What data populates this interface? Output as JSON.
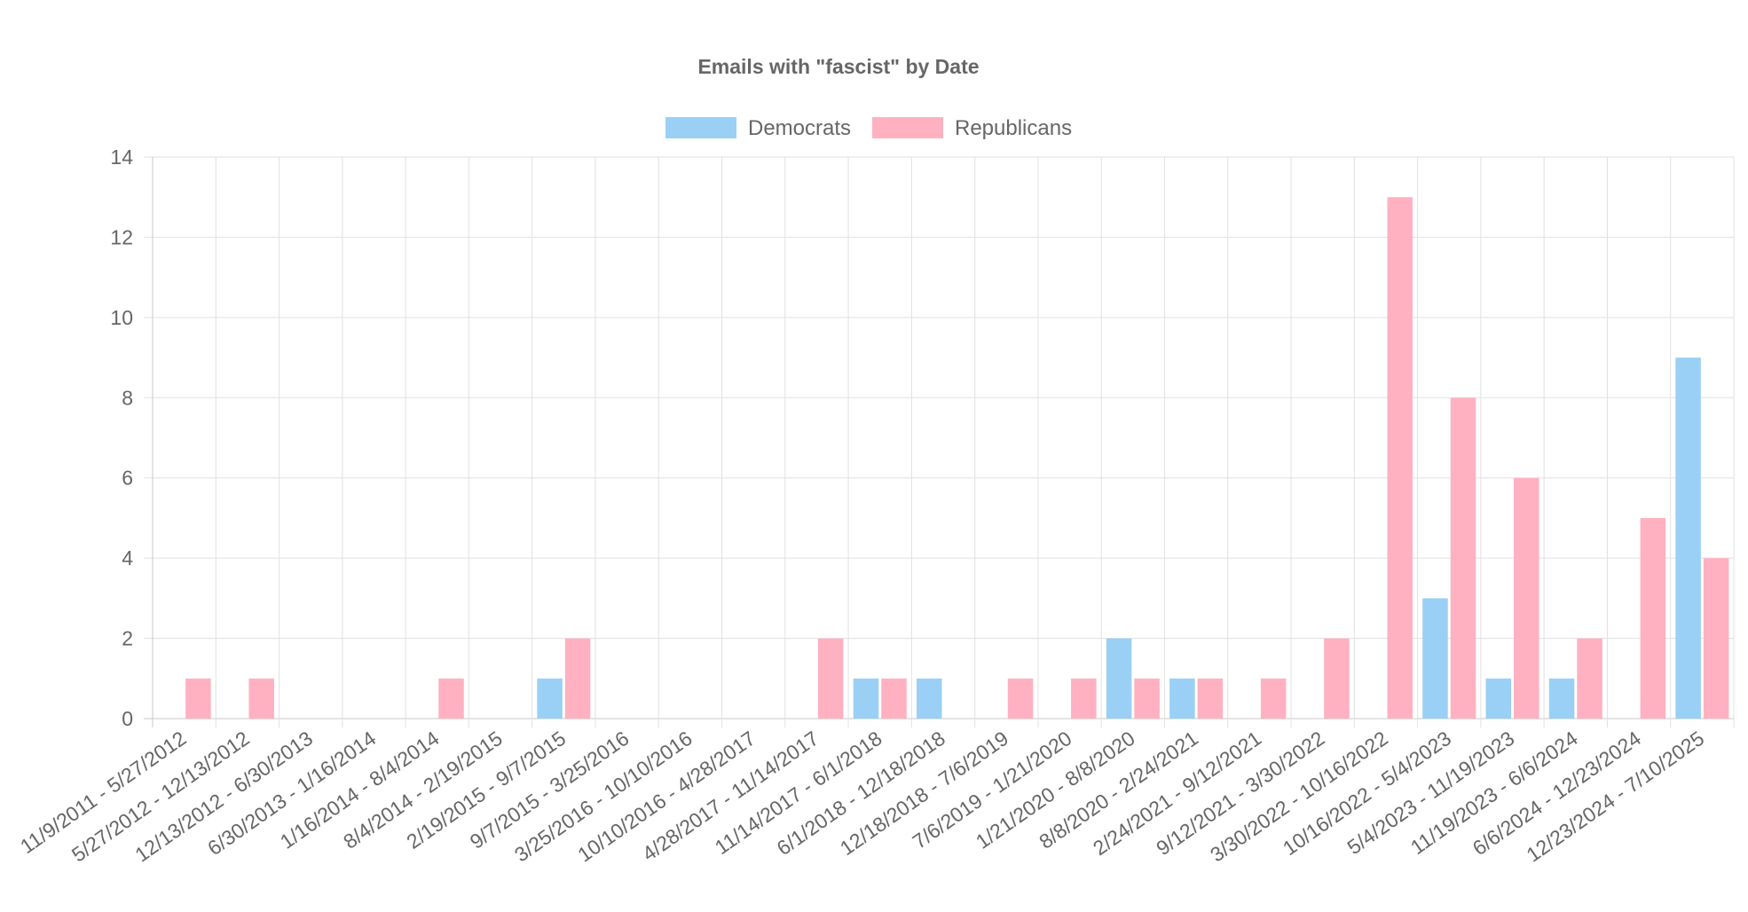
{
  "chart_data": {
    "type": "bar",
    "title": "Emails with \"fascist\" by Date",
    "xlabel": "",
    "ylabel": "",
    "ylim": [
      0,
      14
    ],
    "yticks": [
      0,
      2,
      4,
      6,
      8,
      10,
      12,
      14
    ],
    "grid": true,
    "legend_position": "top",
    "categories": [
      "11/9/2011 - 5/27/2012",
      "5/27/2012 - 12/13/2012",
      "12/13/2012 - 6/30/2013",
      "6/30/2013 - 1/16/2014",
      "1/16/2014 - 8/4/2014",
      "8/4/2014 - 2/19/2015",
      "2/19/2015 - 9/7/2015",
      "9/7/2015 - 3/25/2016",
      "3/25/2016 - 10/10/2016",
      "10/10/2016 - 4/28/2017",
      "4/28/2017 - 11/14/2017",
      "11/14/2017 - 6/1/2018",
      "6/1/2018 - 12/18/2018",
      "12/18/2018 - 7/6/2019",
      "7/6/2019 - 1/21/2020",
      "1/21/2020 - 8/8/2020",
      "8/8/2020 - 2/24/2021",
      "2/24/2021 - 9/12/2021",
      "9/12/2021 - 3/30/2022",
      "3/30/2022 - 10/16/2022",
      "10/16/2022 - 5/4/2023",
      "5/4/2023 - 11/19/2023",
      "11/19/2023 - 6/6/2024",
      "6/6/2024 - 12/23/2024",
      "12/23/2024 - 7/10/2025"
    ],
    "series": [
      {
        "name": "Democrats",
        "color": "#9ad0f5",
        "values": [
          0,
          0,
          0,
          0,
          0,
          0,
          1,
          0,
          0,
          0,
          0,
          1,
          1,
          0,
          0,
          2,
          1,
          0,
          0,
          0,
          3,
          1,
          1,
          0,
          9
        ]
      },
      {
        "name": "Republicans",
        "color": "#ffb1c1",
        "values": [
          1,
          1,
          0,
          0,
          1,
          0,
          2,
          0,
          0,
          0,
          2,
          1,
          0,
          1,
          1,
          1,
          1,
          1,
          2,
          13,
          8,
          6,
          2,
          5,
          4
        ]
      }
    ]
  }
}
